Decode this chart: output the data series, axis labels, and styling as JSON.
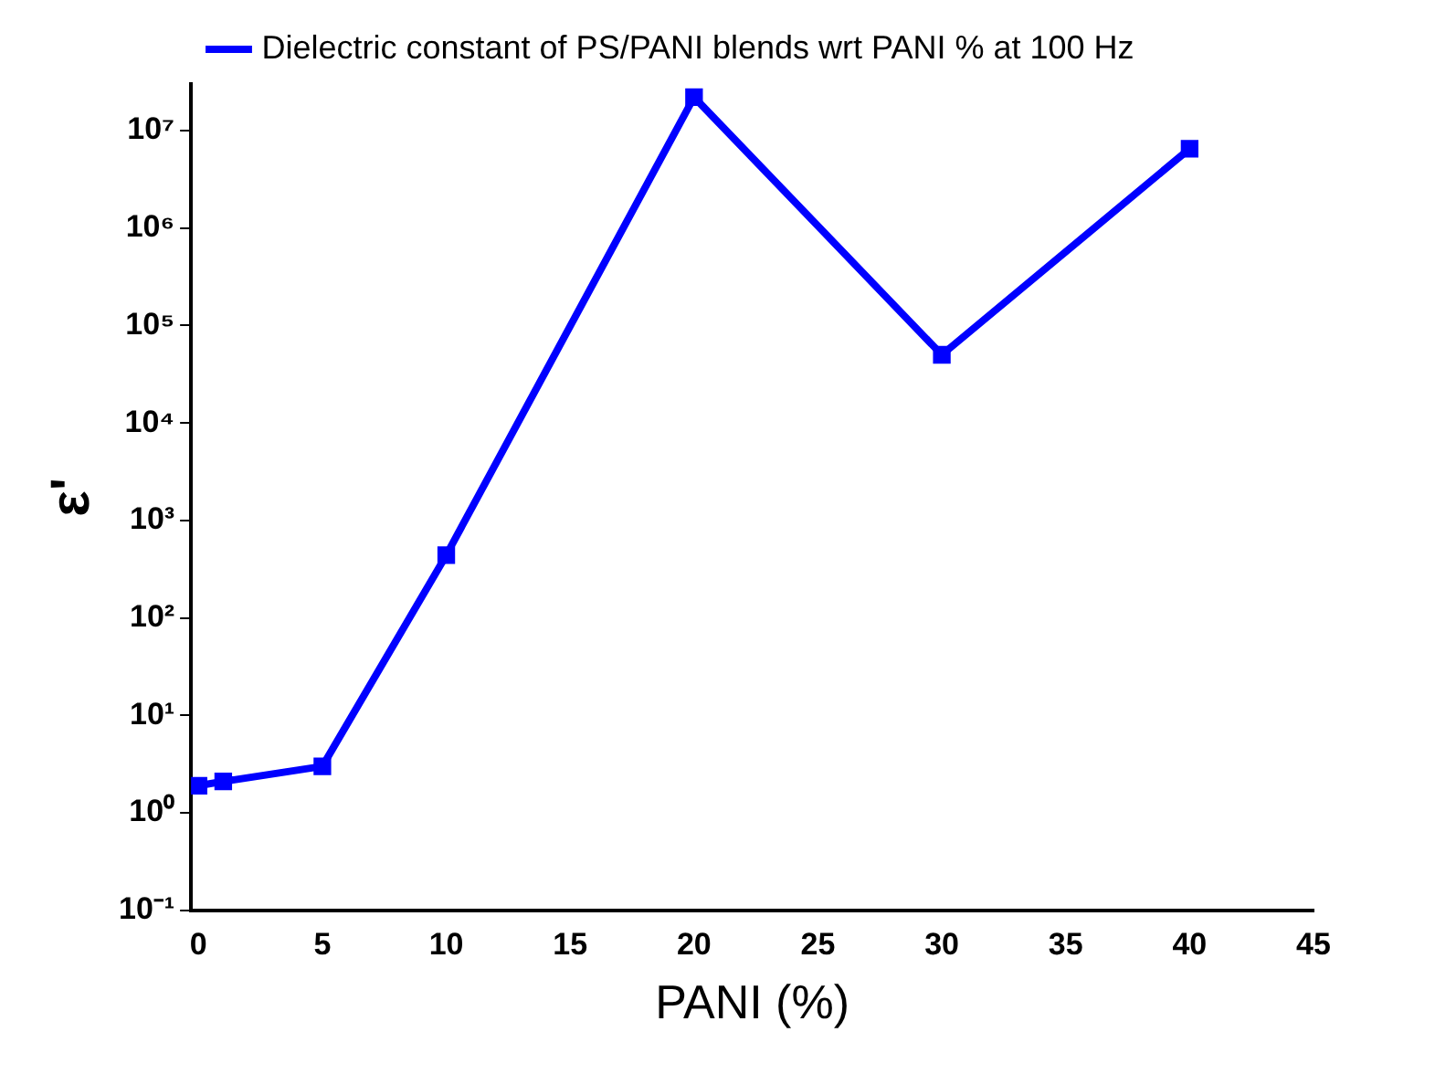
{
  "chart_data": {
    "type": "line",
    "xlabel": "PANI (%)",
    "ylabel": "ε'",
    "x": [
      0,
      1,
      5,
      10,
      20,
      30,
      40
    ],
    "series": [
      {
        "name": "Dielectric constant of PS/PANI blends wrt PANI % at 100 Hz",
        "color": "#0000ff",
        "values": [
          1.9,
          2.1,
          3,
          440,
          22000000,
          50000,
          6500000
        ]
      }
    ],
    "log": "y",
    "xlim": [
      -0.3,
      45
    ],
    "xticks": [
      0,
      5,
      10,
      15,
      20,
      25,
      30,
      35,
      40,
      45
    ],
    "ylim": [
      0.1,
      30000000
    ],
    "yticks": [
      {
        "value": 0.1,
        "label": "10⁻¹"
      },
      {
        "value": 1,
        "label": "10⁰"
      },
      {
        "value": 10,
        "label": "10¹"
      },
      {
        "value": 100,
        "label": "10²"
      },
      {
        "value": 1000,
        "label": "10³"
      },
      {
        "value": 10000,
        "label": "10⁴"
      },
      {
        "value": 100000,
        "label": "10⁵"
      },
      {
        "value": 1000000,
        "label": "10⁶"
      },
      {
        "value": 10000000,
        "label": "10⁷"
      }
    ],
    "grid": false,
    "legend": "top",
    "marker": "square",
    "line_style": "solid"
  }
}
